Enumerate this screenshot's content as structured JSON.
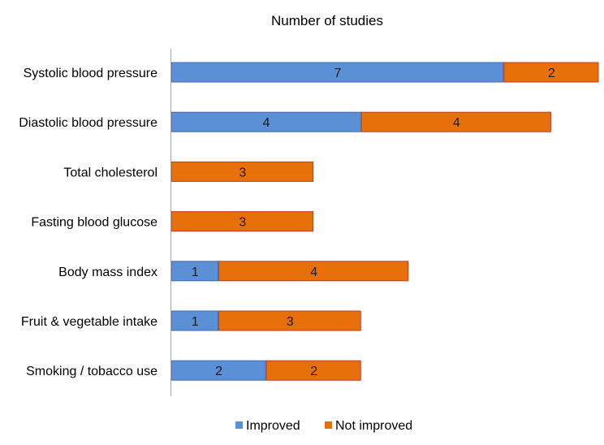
{
  "chart_data": {
    "type": "bar",
    "orientation": "horizontal",
    "stacked": true,
    "title": "Number of studies",
    "xlabel": "",
    "ylabel": "",
    "xlim": [
      0,
      9
    ],
    "grid": false,
    "categories": [
      "Systolic blood pressure",
      "Diastolic blood pressure",
      "Total cholesterol",
      "Fasting blood glucose",
      "Body mass index",
      "Fruit & vegetable intake",
      "Smoking / tobacco use"
    ],
    "series": [
      {
        "name": "Improved",
        "color": "#5B8FD6",
        "border": "#3A6FB8",
        "values": [
          7,
          4,
          0,
          0,
          1,
          1,
          2
        ]
      },
      {
        "name": "Not improved",
        "color": "#E8700A",
        "border": "#C0392B",
        "values": [
          2,
          4,
          3,
          3,
          4,
          3,
          2
        ]
      }
    ],
    "legend_position": "bottom-center"
  }
}
